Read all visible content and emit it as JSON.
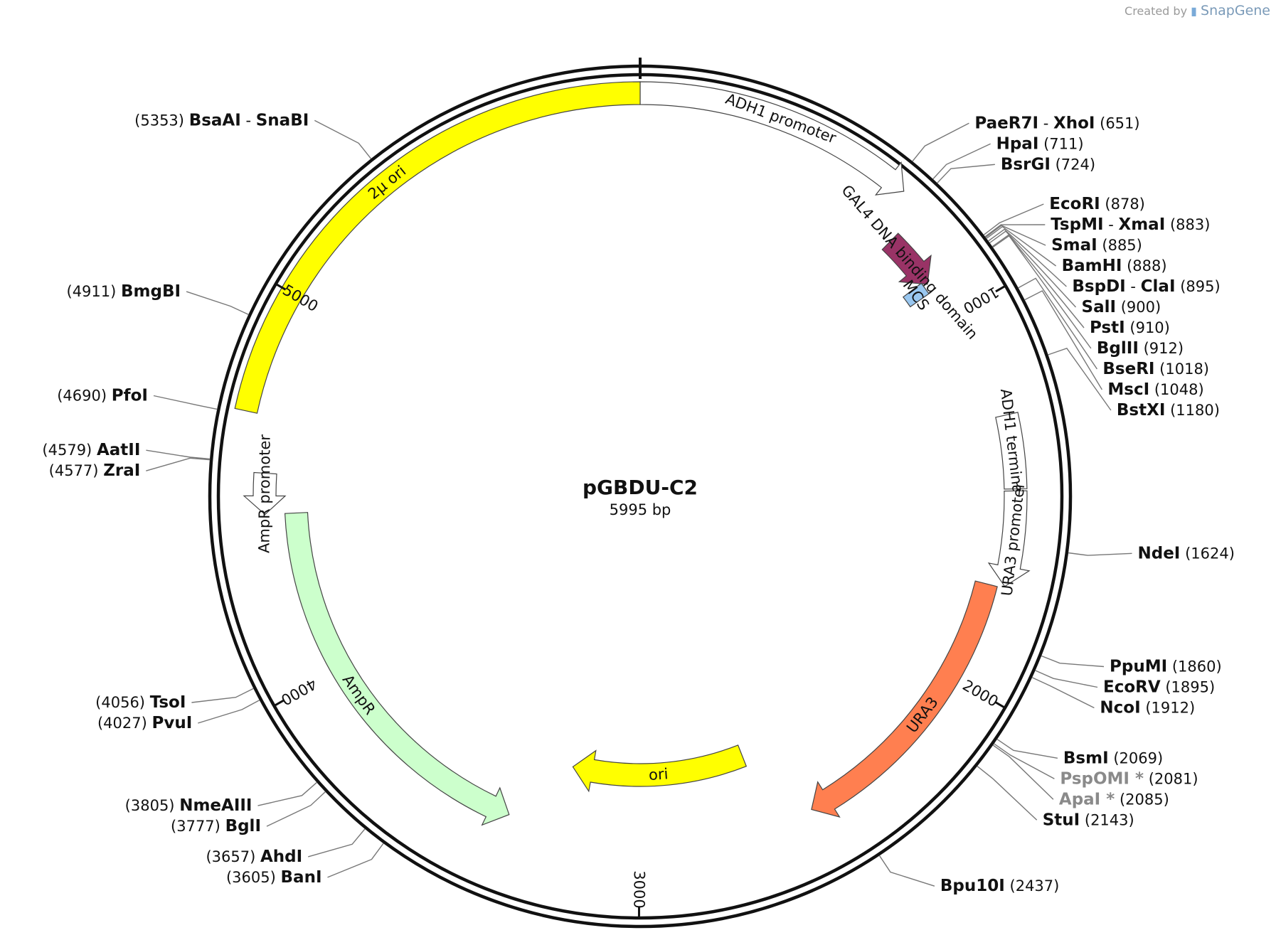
{
  "credit": {
    "prefix": "Created by",
    "brand": "SnapGene"
  },
  "plasmid": {
    "name": "pGBDU-C2",
    "length_bp": 5995,
    "length_label": "5995 bp"
  },
  "colors": {
    "ori2mu": "#ffff00",
    "gal4": "#993366",
    "mcs": "#99c7f0",
    "ura3": "#ff7f50",
    "ampr": "#ccffcc",
    "ori": "#ffff00",
    "promoter": "#ffffff",
    "ring": "#111111"
  },
  "ticks": [
    {
      "pos": 1000,
      "label": "1000"
    },
    {
      "pos": 2000,
      "label": "2000"
    },
    {
      "pos": 3000,
      "label": "3000"
    },
    {
      "pos": 4000,
      "label": "4000"
    },
    {
      "pos": 5000,
      "label": "5000"
    }
  ],
  "features": [
    {
      "id": "adh1-promoter",
      "label": "ADH1 promoter",
      "start": 0,
      "end": 680,
      "color": "#ffffff",
      "dir": 1
    },
    {
      "id": "gal4",
      "label": "GAL4 DNA binding domain",
      "start": 740,
      "end": 892,
      "color": "#993366",
      "dir": 1
    },
    {
      "id": "mcs",
      "label": "MCS",
      "start": 880,
      "end": 915,
      "color": "#99c7f0",
      "dir": 0
    },
    {
      "id": "adh1-terminator",
      "label": "ADH1 terminator",
      "start": 1290,
      "end": 1480,
      "color": "#ffffff",
      "dir": 0
    },
    {
      "id": "ura3-promoter",
      "label": "URA3 promoter",
      "start": 1485,
      "end": 1730,
      "color": "#ffffff",
      "dir": 1
    },
    {
      "id": "ura3",
      "label": "URA3",
      "start": 1735,
      "end": 2520,
      "color": "#ff7f50",
      "dir": 1
    },
    {
      "id": "ori",
      "label": "ori",
      "start": 2640,
      "end": 3230,
      "color": "#ffff00",
      "dir": 1
    },
    {
      "id": "ampr",
      "label": "AmpR",
      "start": 3370,
      "end": 4450,
      "color": "#ccffcc",
      "dir": -1
    },
    {
      "id": "ampr-promoter",
      "label": "AmpR promoter",
      "start": 4450,
      "end": 4555,
      "color": "#ffffff",
      "dir": -1
    },
    {
      "id": "ori2mu",
      "label": "2µ ori",
      "start": 4700,
      "end": 5995,
      "color": "#ffff00",
      "dir": 0
    }
  ],
  "sites": [
    {
      "name": "PaeR7I",
      "name2": "XhoI",
      "pos": "(651)",
      "bp": 651,
      "side": "right",
      "dim": false
    },
    {
      "name": "HpaI",
      "pos": "(711)",
      "bp": 711,
      "side": "right",
      "dim": false
    },
    {
      "name": "BsrGI",
      "pos": "(724)",
      "bp": 724,
      "side": "right",
      "dim": false
    },
    {
      "name": "EcoRI",
      "pos": "(878)",
      "bp": 878,
      "side": "right",
      "dim": false
    },
    {
      "name": "TspMI",
      "name2": "XmaI",
      "pos": "(883)",
      "bp": 883,
      "side": "right",
      "dim": false
    },
    {
      "name": "SmaI",
      "pos": "(885)",
      "bp": 885,
      "side": "right",
      "dim": false
    },
    {
      "name": "BamHI",
      "pos": "(888)",
      "bp": 888,
      "side": "right",
      "dim": false
    },
    {
      "name": "BspDI",
      "name2": "ClaI",
      "pos": "(895)",
      "bp": 895,
      "side": "right",
      "dim": false
    },
    {
      "name": "SalI",
      "pos": "(900)",
      "bp": 900,
      "side": "right",
      "dim": false
    },
    {
      "name": "PstI",
      "pos": "(910)",
      "bp": 910,
      "side": "right",
      "dim": false
    },
    {
      "name": "BglII",
      "pos": "(912)",
      "bp": 912,
      "side": "right",
      "dim": false
    },
    {
      "name": "BseRI",
      "pos": "(1018)",
      "bp": 1018,
      "side": "right",
      "dim": false
    },
    {
      "name": "MscI",
      "pos": "(1048)",
      "bp": 1048,
      "side": "right",
      "dim": false
    },
    {
      "name": "BstXI",
      "pos": "(1180)",
      "bp": 1180,
      "side": "right",
      "dim": false
    },
    {
      "name": "NdeI",
      "pos": "(1624)",
      "bp": 1624,
      "side": "right",
      "dim": false
    },
    {
      "name": "PpuMI",
      "pos": "(1860)",
      "bp": 1860,
      "side": "right",
      "dim": false
    },
    {
      "name": "EcoRV",
      "pos": "(1895)",
      "bp": 1895,
      "side": "right",
      "dim": false
    },
    {
      "name": "NcoI",
      "pos": "(1912)",
      "bp": 1912,
      "side": "right",
      "dim": false
    },
    {
      "name": "BsmI",
      "pos": "(2069)",
      "bp": 2069,
      "side": "right",
      "dim": false
    },
    {
      "name": "PspOMI *",
      "pos": "(2081)",
      "bp": 2081,
      "side": "right",
      "dim": true
    },
    {
      "name": "ApaI *",
      "pos": "(2085)",
      "bp": 2085,
      "side": "right",
      "dim": true
    },
    {
      "name": "StuI",
      "pos": "(2143)",
      "bp": 2143,
      "side": "right",
      "dim": false
    },
    {
      "name": "Bpu10I",
      "pos": "(2437)",
      "bp": 2437,
      "side": "right",
      "dim": false
    },
    {
      "name": "BanI",
      "pos": "(3605)",
      "bp": 3605,
      "side": "left",
      "dim": false
    },
    {
      "name": "AhdI",
      "pos": "(3657)",
      "bp": 3657,
      "side": "left",
      "dim": false
    },
    {
      "name": "BglI",
      "pos": "(3777)",
      "bp": 3777,
      "side": "left",
      "dim": false
    },
    {
      "name": "NmeAIII",
      "pos": "(3805)",
      "bp": 3805,
      "side": "left",
      "dim": false
    },
    {
      "name": "PvuI",
      "pos": "(4027)",
      "bp": 4027,
      "side": "left",
      "dim": false
    },
    {
      "name": "TsoI",
      "pos": "(4056)",
      "bp": 4056,
      "side": "left",
      "dim": false
    },
    {
      "name": "ZraI",
      "pos": "(4577)",
      "bp": 4577,
      "side": "left",
      "dim": false
    },
    {
      "name": "AatII",
      "pos": "(4579)",
      "bp": 4579,
      "side": "left",
      "dim": false
    },
    {
      "name": "PfoI",
      "pos": "(4690)",
      "bp": 4690,
      "side": "left",
      "dim": false
    },
    {
      "name": "BmgBI",
      "pos": "(4911)",
      "bp": 4911,
      "side": "left",
      "dim": false
    },
    {
      "name": "BsaAI",
      "name2": "SnaBI",
      "pos": "(5353)",
      "bp": 5353,
      "side": "left",
      "dim": false
    }
  ]
}
